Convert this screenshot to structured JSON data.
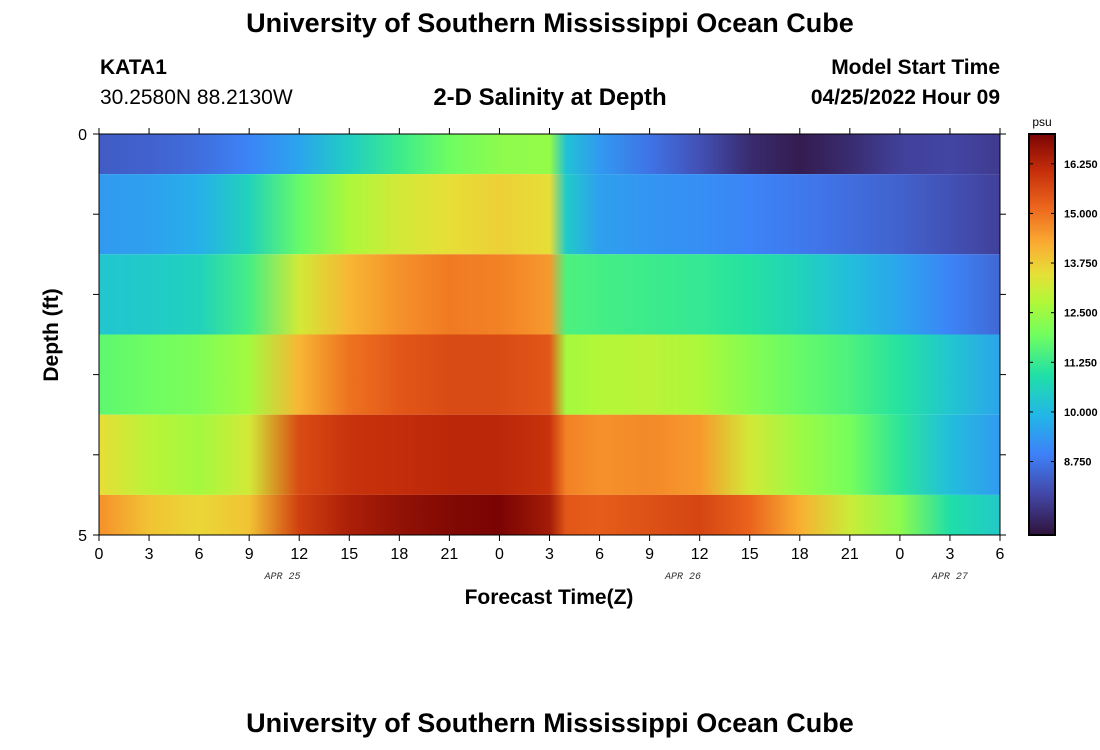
{
  "page": {
    "title_top": "University of Southern Mississippi Ocean Cube",
    "title_bottom": "University of Southern Mississippi Ocean Cube",
    "station": "KATA1",
    "coords": "30.2580N  88.2130W",
    "subtitle": "2-D Salinity at Depth",
    "start_label": "Model Start Time",
    "start_value": "04/25/2022 Hour 09"
  },
  "chart_data": {
    "type": "heatmap",
    "title": "2-D Salinity at Depth",
    "xlabel": "Forecast Time(Z)",
    "ylabel": "Depth (ft)",
    "x_ticks": [
      "0",
      "3",
      "6",
      "9",
      "12",
      "15",
      "18",
      "21",
      "0",
      "3",
      "6",
      "9",
      "12",
      "15",
      "18",
      "21",
      "0",
      "3",
      "6"
    ],
    "date_labels": [
      {
        "text": "APR 25",
        "at_hour": 11
      },
      {
        "text": "APR 26",
        "at_hour": 35
      },
      {
        "text": "APR 27",
        "at_hour": 51
      }
    ],
    "x_range_hours": [
      0,
      54
    ],
    "y_range_ft": [
      0,
      5
    ],
    "y_ticks": [
      "0",
      "5"
    ],
    "colorbar": {
      "unit": "psu",
      "min": 6.9,
      "max": 17.0,
      "ticks": [
        "16.250",
        "15.000",
        "13.750",
        "12.500",
        "11.250",
        "10.000",
        "8.750"
      ]
    },
    "layers": [
      {
        "depth_top": 0.0,
        "depth_bottom": 0.5,
        "times": [
          0,
          3,
          6,
          9,
          12,
          15,
          18,
          21,
          24,
          27,
          28,
          30,
          33,
          36,
          39,
          42,
          45,
          48,
          51,
          54
        ],
        "values": [
          8.3,
          8.4,
          8.6,
          9.0,
          9.6,
          10.5,
          11.3,
          11.9,
          12.3,
          12.4,
          10.2,
          9.4,
          8.7,
          8.1,
          7.4,
          7.1,
          7.4,
          7.8,
          7.9,
          7.7
        ]
      },
      {
        "depth_top": 0.5,
        "depth_bottom": 1.5,
        "times": [
          0,
          3,
          6,
          9,
          12,
          15,
          18,
          21,
          24,
          27,
          28,
          30,
          33,
          36,
          39,
          42,
          45,
          48,
          51,
          54
        ],
        "values": [
          9.4,
          9.5,
          9.8,
          10.6,
          11.8,
          12.7,
          13.2,
          13.5,
          13.7,
          13.5,
          10.4,
          9.5,
          9.3,
          9.2,
          9.0,
          8.8,
          8.6,
          8.4,
          8.1,
          7.8
        ]
      },
      {
        "depth_top": 1.5,
        "depth_bottom": 2.5,
        "times": [
          0,
          3,
          6,
          9,
          12,
          15,
          18,
          21,
          24,
          27,
          28,
          30,
          33,
          36,
          39,
          42,
          45,
          48,
          51,
          54
        ],
        "values": [
          10.3,
          10.4,
          10.6,
          11.4,
          13.2,
          14.1,
          14.6,
          14.9,
          14.8,
          14.5,
          11.5,
          11.4,
          11.3,
          11.2,
          11.0,
          10.6,
          10.1,
          9.6,
          9.0,
          8.5
        ]
      },
      {
        "depth_top": 2.5,
        "depth_bottom": 3.5,
        "times": [
          0,
          3,
          6,
          9,
          12,
          15,
          18,
          21,
          24,
          27,
          28,
          30,
          33,
          36,
          39,
          42,
          45,
          48,
          51,
          54
        ],
        "values": [
          11.7,
          11.9,
          12.1,
          12.6,
          14.1,
          15.0,
          15.4,
          15.6,
          15.6,
          15.4,
          12.6,
          12.8,
          12.9,
          12.7,
          12.2,
          11.8,
          11.5,
          11.0,
          10.3,
          9.6
        ]
      },
      {
        "depth_top": 3.5,
        "depth_bottom": 4.5,
        "times": [
          0,
          3,
          6,
          9,
          12,
          15,
          18,
          21,
          24,
          27,
          28,
          30,
          33,
          36,
          39,
          42,
          45,
          48,
          51,
          54
        ],
        "values": [
          13.5,
          12.9,
          12.6,
          13.2,
          15.6,
          16.0,
          16.1,
          16.2,
          16.2,
          16.0,
          14.8,
          14.6,
          14.7,
          14.5,
          13.2,
          12.5,
          12.0,
          11.1,
          10.1,
          9.4
        ]
      },
      {
        "depth_top": 4.5,
        "depth_bottom": 5.0,
        "times": [
          0,
          3,
          6,
          9,
          12,
          15,
          18,
          21,
          24,
          27,
          28,
          30,
          33,
          36,
          39,
          42,
          45,
          48,
          51,
          54
        ],
        "values": [
          14.6,
          13.9,
          13.6,
          13.9,
          15.8,
          16.4,
          16.7,
          16.9,
          17.0,
          16.5,
          15.4,
          15.3,
          15.5,
          15.7,
          15.2,
          14.2,
          13.1,
          12.3,
          10.9,
          10.4
        ]
      }
    ]
  }
}
